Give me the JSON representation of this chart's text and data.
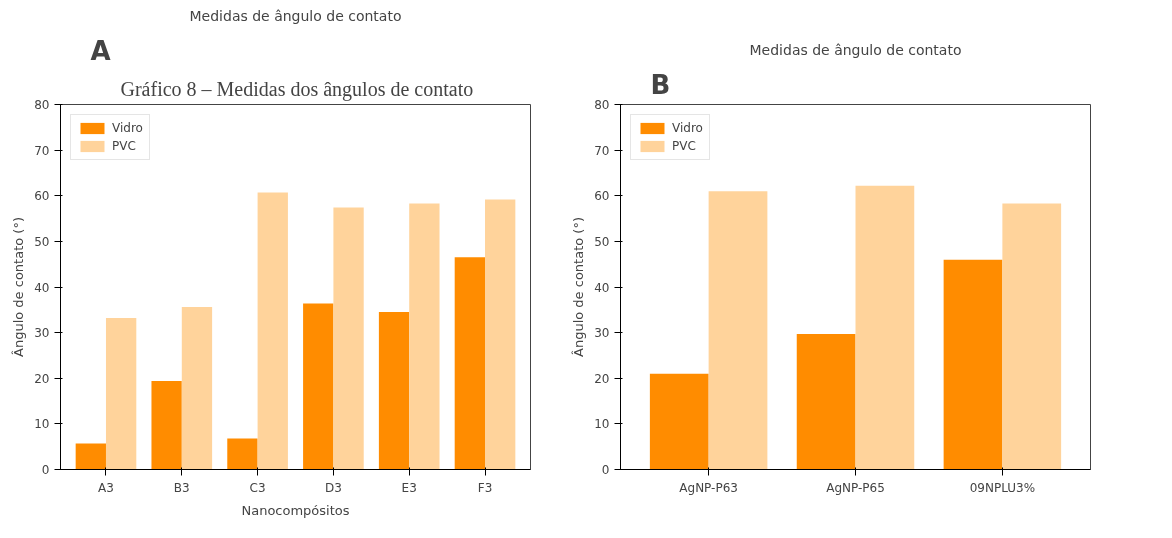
{
  "chart_data": [
    {
      "type": "bar",
      "title": "Medidas de ângulo de contato",
      "annotations": [
        "Gráfico 8 – Medidas dos ângulos de contato",
        "A"
      ],
      "xlabel": "Nanocompósitos",
      "ylabel": "Ângulo de contato (°)",
      "categories": [
        "A3",
        "B3",
        "C3",
        "D3",
        "E3",
        "F3"
      ],
      "series": [
        {
          "name": "Vidro",
          "color": "#ff8c00",
          "values": [
            5.7,
            19.4,
            6.8,
            36.4,
            34.5,
            46.5
          ]
        },
        {
          "name": "PVC",
          "color": "#ffd39b",
          "values": [
            33.2,
            35.6,
            60.7,
            57.4,
            58.3,
            59.2
          ]
        }
      ],
      "ylim": [
        0,
        80
      ],
      "yticks": [
        0,
        10,
        20,
        30,
        40,
        50,
        60,
        70,
        80
      ],
      "legend": "top left",
      "grid": false
    },
    {
      "type": "bar",
      "title": "Medidas de ângulo de contato",
      "annotations": [
        "B"
      ],
      "ylabel": "Ângulo de contato (°)",
      "categories": [
        "AgNP-P63",
        "AgNP-P65",
        "09NPLU3%"
      ],
      "series": [
        {
          "name": "Vidro",
          "color": "#ff8c00",
          "values": [
            21.0,
            29.7,
            46.0
          ]
        },
        {
          "name": "PVC",
          "color": "#ffd39b",
          "values": [
            61.0,
            62.2,
            58.3
          ]
        }
      ],
      "ylim": [
        0,
        80
      ],
      "yticks": [
        0,
        10,
        20,
        30,
        40,
        50,
        60,
        70,
        80
      ],
      "legend": "top left",
      "grid": false
    }
  ]
}
